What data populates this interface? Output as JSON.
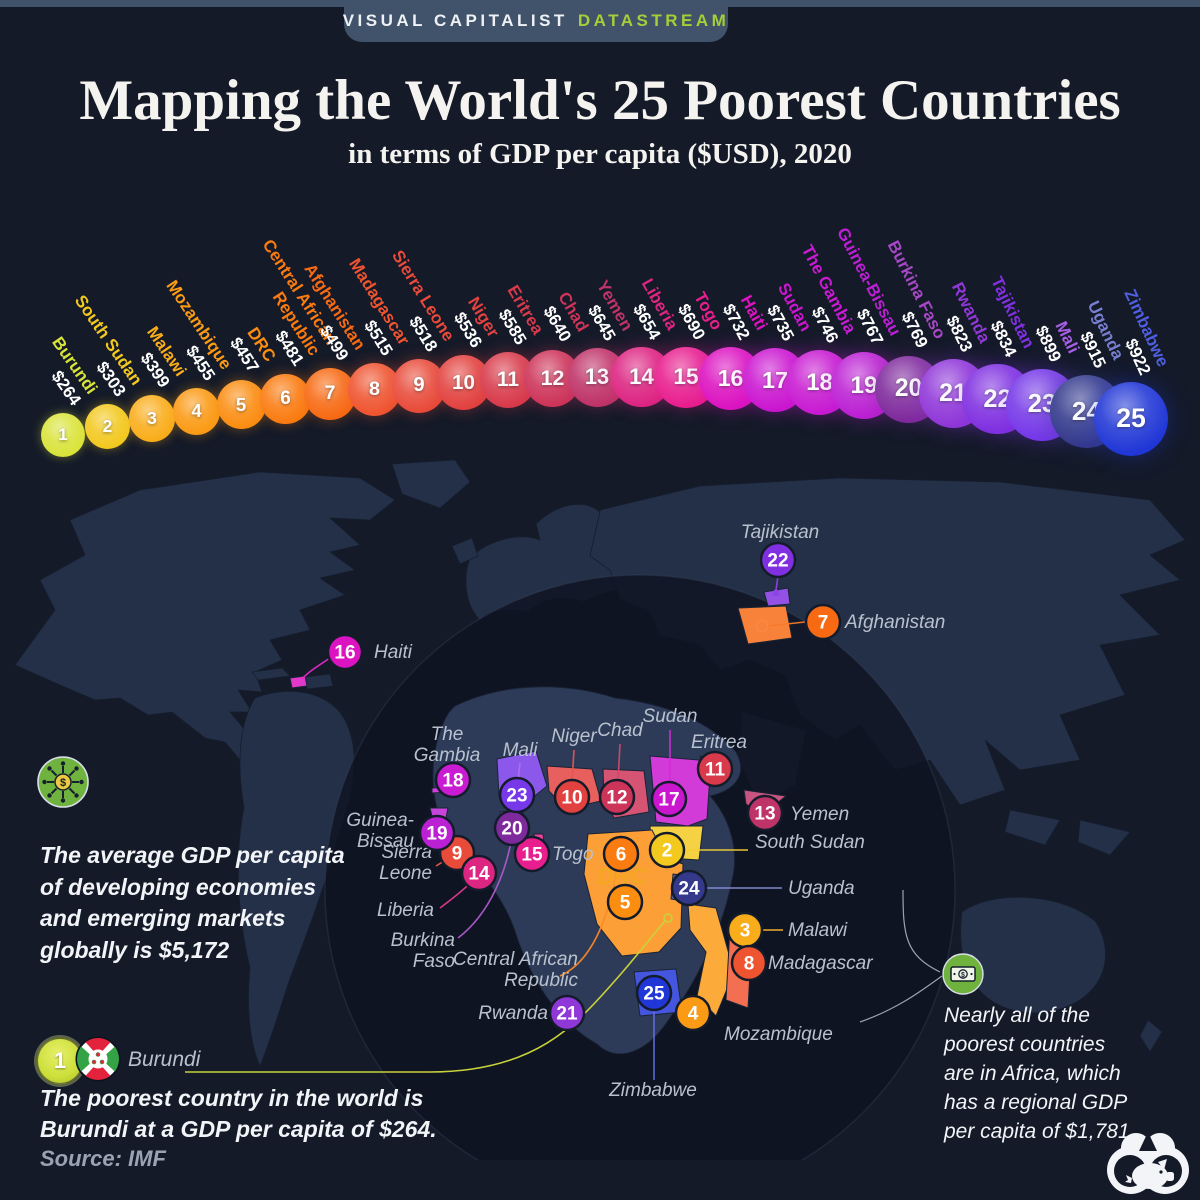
{
  "header": {
    "brand": "VISUAL CAPITALIST",
    "product": "DATASTREAM"
  },
  "title": "Mapping the World's 25 Poorest Countries",
  "subtitle": "in terms of GDP per capita ($USD), 2020",
  "source": "Source: IMF",
  "theme": {
    "background": "#141a28",
    "tab": "#41536a",
    "accent_green": "#a6ce39",
    "land": "#243048",
    "africa_land": "#2d3b58",
    "map_label": "#b9c1ce"
  },
  "chart_data": {
    "type": "bubble",
    "title": "Mapping the World's 25 Poorest Countries",
    "subtitle": "in terms of GDP per capita ($USD), 2020",
    "unit": "USD per capita",
    "layout_hint": "single row of 25 bubbles growing left to right, color gradient yellow-green to blue; each bubble numbered by rank with rotated country + value labels; same ranks plotted as markers on world map",
    "series": [
      {
        "rank": 1,
        "country": "Burundi",
        "value": 264,
        "color": "#d9e43a"
      },
      {
        "rank": 2,
        "country": "South Sudan",
        "value": 303,
        "color": "#f3c91f"
      },
      {
        "rank": 3,
        "country": "Malawi",
        "value": 399,
        "color": "#f9ad1b"
      },
      {
        "rank": 4,
        "country": "Mozambique",
        "value": 455,
        "color": "#fb9a14"
      },
      {
        "rank": 5,
        "country": "DRC",
        "value": 457,
        "color": "#fb8d11"
      },
      {
        "rank": 6,
        "country": "Central African Republic",
        "value": 481,
        "color": "#fa7b0f"
      },
      {
        "rank": 7,
        "country": "Afghanistan",
        "value": 499,
        "color": "#f76a13"
      },
      {
        "rank": 8,
        "country": "Madagascar",
        "value": 515,
        "color": "#ef5430"
      },
      {
        "rank": 9,
        "country": "Sierra Leone",
        "value": 518,
        "color": "#e84b3a"
      },
      {
        "rank": 10,
        "country": "Niger",
        "value": 536,
        "color": "#e2423f"
      },
      {
        "rank": 11,
        "country": "Eritrea",
        "value": 585,
        "color": "#d83a4b"
      },
      {
        "rank": 12,
        "country": "Chad",
        "value": 640,
        "color": "#cd3459"
      },
      {
        "rank": 13,
        "country": "Yemen",
        "value": 645,
        "color": "#bf3468"
      },
      {
        "rank": 14,
        "country": "Liberia",
        "value": 654,
        "color": "#dd2582"
      },
      {
        "rank": 15,
        "country": "Togo",
        "value": 690,
        "color": "#e81e8e"
      },
      {
        "rank": 16,
        "country": "Haiti",
        "value": 732,
        "color": "#dc13c1"
      },
      {
        "rank": 17,
        "country": "Sudan",
        "value": 735,
        "color": "#cb16d0"
      },
      {
        "rank": 18,
        "country": "The Gambia",
        "value": 746,
        "color": "#c81bd2"
      },
      {
        "rank": 19,
        "country": "Guinea-Bissau",
        "value": 767,
        "color": "#bc20d4"
      },
      {
        "rank": 20,
        "country": "Burkina Faso",
        "value": 769,
        "color": "#7f2a9c",
        "label_color": "#a648c6"
      },
      {
        "rank": 21,
        "country": "Rwanda",
        "value": 823,
        "color": "#9037d8"
      },
      {
        "rank": 22,
        "country": "Tajikistan",
        "value": 834,
        "color": "#8030e0"
      },
      {
        "rank": 23,
        "country": "Mali",
        "value": 899,
        "color": "#7638e8",
        "label_color": "#a85fe8"
      },
      {
        "rank": 24,
        "country": "Uganda",
        "value": 915,
        "color": "#34398c",
        "label_color": "#787fd0"
      },
      {
        "rank": 25,
        "country": "Zimbabwe",
        "value": 922,
        "color": "#2036d6",
        "label_color": "#4f5fe0"
      }
    ]
  },
  "callouts": {
    "average": {
      "icon": "coin-network-icon",
      "text": "The average GDP per capita\nof developing economies\nand emerging markets\nglobally is $5,172"
    },
    "africa": {
      "icon": "banknote-icon",
      "text": "Nearly all of the\npoorest countries\nare in Africa, which\nhas a regional GDP\nper capita of $1,781."
    },
    "burundi": {
      "rank": "1",
      "icon": "burundi-flag-icon",
      "label": "Burundi",
      "text": "The poorest country in the world is\nBurundi at a GDP per capita of $264."
    }
  }
}
